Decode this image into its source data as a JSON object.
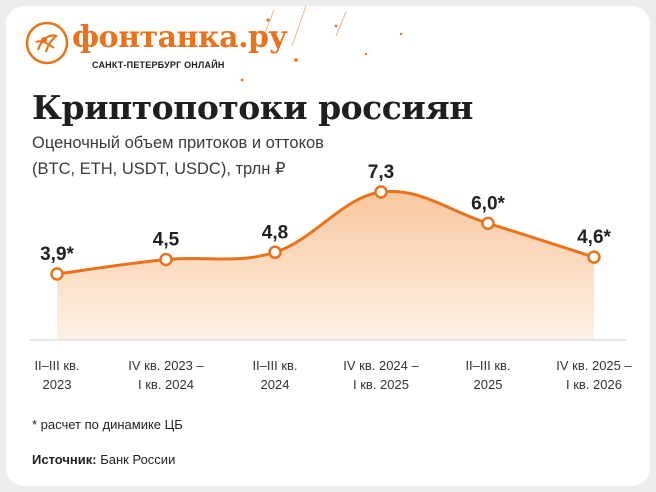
{
  "brand": {
    "name": "фонтанка.ру",
    "tagline": "САНКТ-ПЕТЕРБУРГ ОНЛАЙН",
    "color": "#e8731c"
  },
  "title": "Криптопотоки россиян",
  "subtitle": {
    "line1": "Оценочный объем притоков и оттоков",
    "line2": "(BTC, ETH, USDT, USDC), трлн ₽"
  },
  "chart_data": {
    "type": "area",
    "categories": [
      [
        "II–III кв.",
        "2023"
      ],
      [
        "IV кв. 2023 –",
        "I кв. 2024"
      ],
      [
        "II–III кв.",
        "2024"
      ],
      [
        "IV кв. 2024 –",
        "I кв. 2025"
      ],
      [
        "II–III кв.",
        "2025"
      ],
      [
        "IV кв. 2025 –",
        "I кв. 2026"
      ]
    ],
    "values": [
      3.9,
      4.5,
      4.8,
      7.3,
      6.0,
      4.6
    ],
    "data_labels": [
      "3,9*",
      "4,5",
      "4,8",
      "7,3",
      "6,0*",
      "4,6*"
    ],
    "ylim": [
      0,
      8
    ],
    "grid": false,
    "legend": "none",
    "line_color": "#e8731c",
    "fill_color": "#fbd9bf"
  },
  "footnote": "* расчет по динамике ЦБ",
  "source": {
    "label": "Источник:",
    "text": " Банк России"
  }
}
